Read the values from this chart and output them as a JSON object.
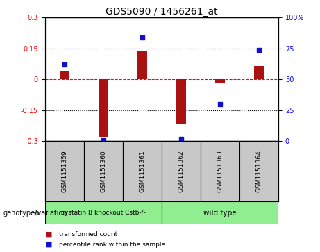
{
  "title": "GDS5090 / 1456261_at",
  "categories": [
    "GSM1151359",
    "GSM1151360",
    "GSM1151361",
    "GSM1151362",
    "GSM1151363",
    "GSM1151364"
  ],
  "bar_values": [
    0.04,
    -0.28,
    0.135,
    -0.215,
    -0.02,
    0.065
  ],
  "scatter_values": [
    62,
    1,
    84,
    2,
    30,
    74
  ],
  "ylim_left": [
    -0.3,
    0.3
  ],
  "ylim_right": [
    0,
    100
  ],
  "yticks_left": [
    -0.3,
    -0.15,
    0.0,
    0.15,
    0.3
  ],
  "yticks_right": [
    0,
    25,
    50,
    75,
    100
  ],
  "ytick_labels_left": [
    "-0.3",
    "-0.15",
    "0",
    "0.15",
    "0.3"
  ],
  "ytick_labels_right": [
    "0",
    "25",
    "50",
    "75",
    "100%"
  ],
  "hlines": [
    0.15,
    0.0,
    -0.15
  ],
  "hline_styles": [
    "dotted",
    "dashed",
    "dotted"
  ],
  "hline_colors": [
    "black",
    "red",
    "black"
  ],
  "bar_color": "#aa1111",
  "scatter_color": "#1111cc",
  "group1_label": "cystatin B knockout Cstb-/-",
  "group2_label": "wild type",
  "group1_indices": [
    0,
    1,
    2
  ],
  "group2_indices": [
    3,
    4,
    5
  ],
  "group1_color": "#90ee90",
  "group2_color": "#90ee90",
  "sample_box_color": "#c8c8c8",
  "genotype_label": "genotype/variation",
  "legend1_label": "transformed count",
  "legend2_label": "percentile rank within the sample",
  "title_fontsize": 10,
  "tick_fontsize": 7,
  "label_fontsize": 7,
  "bar_width": 0.25
}
